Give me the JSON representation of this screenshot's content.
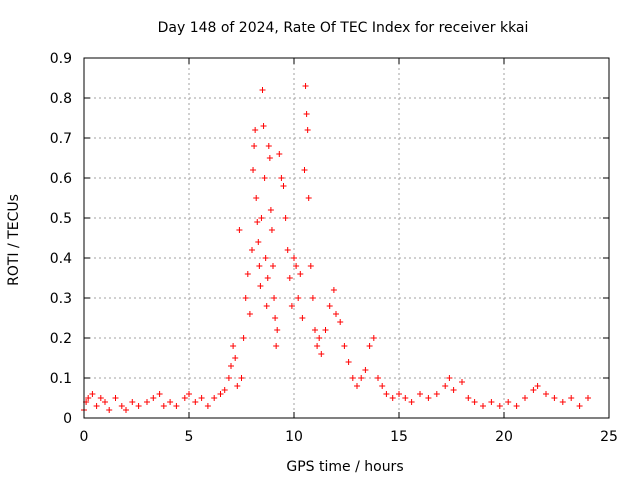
{
  "chart_data": {
    "type": "scatter",
    "title": "Day 148 of 2024, Rate Of TEC Index for receiver kkai",
    "xlabel": "GPS time / hours",
    "ylabel": "ROTI / TECUs",
    "xlim": [
      0,
      25
    ],
    "ylim": [
      0,
      0.9
    ],
    "xticks": [
      0,
      5,
      10,
      15,
      20,
      25
    ],
    "xtick_labels": [
      "0",
      "5",
      "10",
      "15",
      "20",
      "25"
    ],
    "yticks": [
      0,
      0.1,
      0.2,
      0.3,
      0.4,
      0.5,
      0.6,
      0.7,
      0.8,
      0.9
    ],
    "ytick_labels": [
      "0",
      "0.1",
      "0.2",
      "0.3",
      "0.4",
      "0.5",
      "0.6",
      "0.7",
      "0.8",
      "0.9"
    ],
    "grid": true,
    "marker": "+",
    "color": "#ff0000",
    "series": [
      {
        "name": "ROTI",
        "points": [
          [
            0.0,
            0.02
          ],
          [
            0.1,
            0.04
          ],
          [
            0.2,
            0.05
          ],
          [
            0.4,
            0.06
          ],
          [
            0.6,
            0.03
          ],
          [
            0.8,
            0.05
          ],
          [
            1.0,
            0.04
          ],
          [
            1.2,
            0.02
          ],
          [
            1.5,
            0.05
          ],
          [
            1.8,
            0.03
          ],
          [
            2.0,
            0.02
          ],
          [
            2.3,
            0.04
          ],
          [
            2.6,
            0.03
          ],
          [
            3.0,
            0.04
          ],
          [
            3.3,
            0.05
          ],
          [
            3.6,
            0.06
          ],
          [
            3.8,
            0.03
          ],
          [
            4.1,
            0.04
          ],
          [
            4.4,
            0.03
          ],
          [
            4.8,
            0.05
          ],
          [
            5.0,
            0.06
          ],
          [
            5.3,
            0.04
          ],
          [
            5.6,
            0.05
          ],
          [
            5.9,
            0.03
          ],
          [
            6.2,
            0.05
          ],
          [
            6.5,
            0.06
          ],
          [
            6.7,
            0.07
          ],
          [
            6.9,
            0.1
          ],
          [
            7.0,
            0.13
          ],
          [
            7.1,
            0.18
          ],
          [
            7.2,
            0.15
          ],
          [
            7.3,
            0.08
          ],
          [
            7.4,
            0.47
          ],
          [
            7.5,
            0.1
          ],
          [
            7.6,
            0.2
          ],
          [
            7.7,
            0.3
          ],
          [
            7.8,
            0.36
          ],
          [
            7.9,
            0.26
          ],
          [
            8.0,
            0.42
          ],
          [
            8.05,
            0.62
          ],
          [
            8.1,
            0.68
          ],
          [
            8.15,
            0.72
          ],
          [
            8.2,
            0.55
          ],
          [
            8.25,
            0.49
          ],
          [
            8.3,
            0.44
          ],
          [
            8.35,
            0.38
          ],
          [
            8.4,
            0.33
          ],
          [
            8.45,
            0.5
          ],
          [
            8.5,
            0.82
          ],
          [
            8.55,
            0.73
          ],
          [
            8.6,
            0.6
          ],
          [
            8.65,
            0.4
          ],
          [
            8.7,
            0.28
          ],
          [
            8.75,
            0.35
          ],
          [
            8.8,
            0.68
          ],
          [
            8.85,
            0.65
          ],
          [
            8.9,
            0.52
          ],
          [
            8.95,
            0.47
          ],
          [
            9.0,
            0.38
          ],
          [
            9.05,
            0.3
          ],
          [
            9.1,
            0.25
          ],
          [
            9.15,
            0.18
          ],
          [
            9.2,
            0.22
          ],
          [
            9.3,
            0.66
          ],
          [
            9.4,
            0.6
          ],
          [
            9.5,
            0.58
          ],
          [
            9.6,
            0.5
          ],
          [
            9.7,
            0.42
          ],
          [
            9.8,
            0.35
          ],
          [
            9.9,
            0.28
          ],
          [
            10.0,
            0.4
          ],
          [
            10.1,
            0.38
          ],
          [
            10.2,
            0.3
          ],
          [
            10.3,
            0.36
          ],
          [
            10.4,
            0.25
          ],
          [
            10.5,
            0.62
          ],
          [
            10.55,
            0.83
          ],
          [
            10.6,
            0.76
          ],
          [
            10.65,
            0.72
          ],
          [
            10.7,
            0.55
          ],
          [
            10.8,
            0.38
          ],
          [
            10.9,
            0.3
          ],
          [
            11.0,
            0.22
          ],
          [
            11.1,
            0.18
          ],
          [
            11.2,
            0.2
          ],
          [
            11.3,
            0.16
          ],
          [
            11.5,
            0.22
          ],
          [
            11.7,
            0.28
          ],
          [
            11.9,
            0.32
          ],
          [
            12.0,
            0.26
          ],
          [
            12.2,
            0.24
          ],
          [
            12.4,
            0.18
          ],
          [
            12.6,
            0.14
          ],
          [
            12.8,
            0.1
          ],
          [
            13.0,
            0.08
          ],
          [
            13.2,
            0.1
          ],
          [
            13.4,
            0.12
          ],
          [
            13.6,
            0.18
          ],
          [
            13.8,
            0.2
          ],
          [
            14.0,
            0.1
          ],
          [
            14.2,
            0.08
          ],
          [
            14.4,
            0.06
          ],
          [
            14.7,
            0.05
          ],
          [
            15.0,
            0.06
          ],
          [
            15.3,
            0.05
          ],
          [
            15.6,
            0.04
          ],
          [
            16.0,
            0.06
          ],
          [
            16.4,
            0.05
          ],
          [
            16.8,
            0.06
          ],
          [
            17.2,
            0.08
          ],
          [
            17.4,
            0.1
          ],
          [
            17.6,
            0.07
          ],
          [
            18.0,
            0.09
          ],
          [
            18.3,
            0.05
          ],
          [
            18.6,
            0.04
          ],
          [
            19.0,
            0.03
          ],
          [
            19.4,
            0.04
          ],
          [
            19.8,
            0.03
          ],
          [
            20.2,
            0.04
          ],
          [
            20.6,
            0.03
          ],
          [
            21.0,
            0.05
          ],
          [
            21.4,
            0.07
          ],
          [
            21.6,
            0.08
          ],
          [
            22.0,
            0.06
          ],
          [
            22.4,
            0.05
          ],
          [
            22.8,
            0.04
          ],
          [
            23.2,
            0.05
          ],
          [
            23.6,
            0.03
          ],
          [
            24.0,
            0.05
          ]
        ]
      }
    ]
  }
}
